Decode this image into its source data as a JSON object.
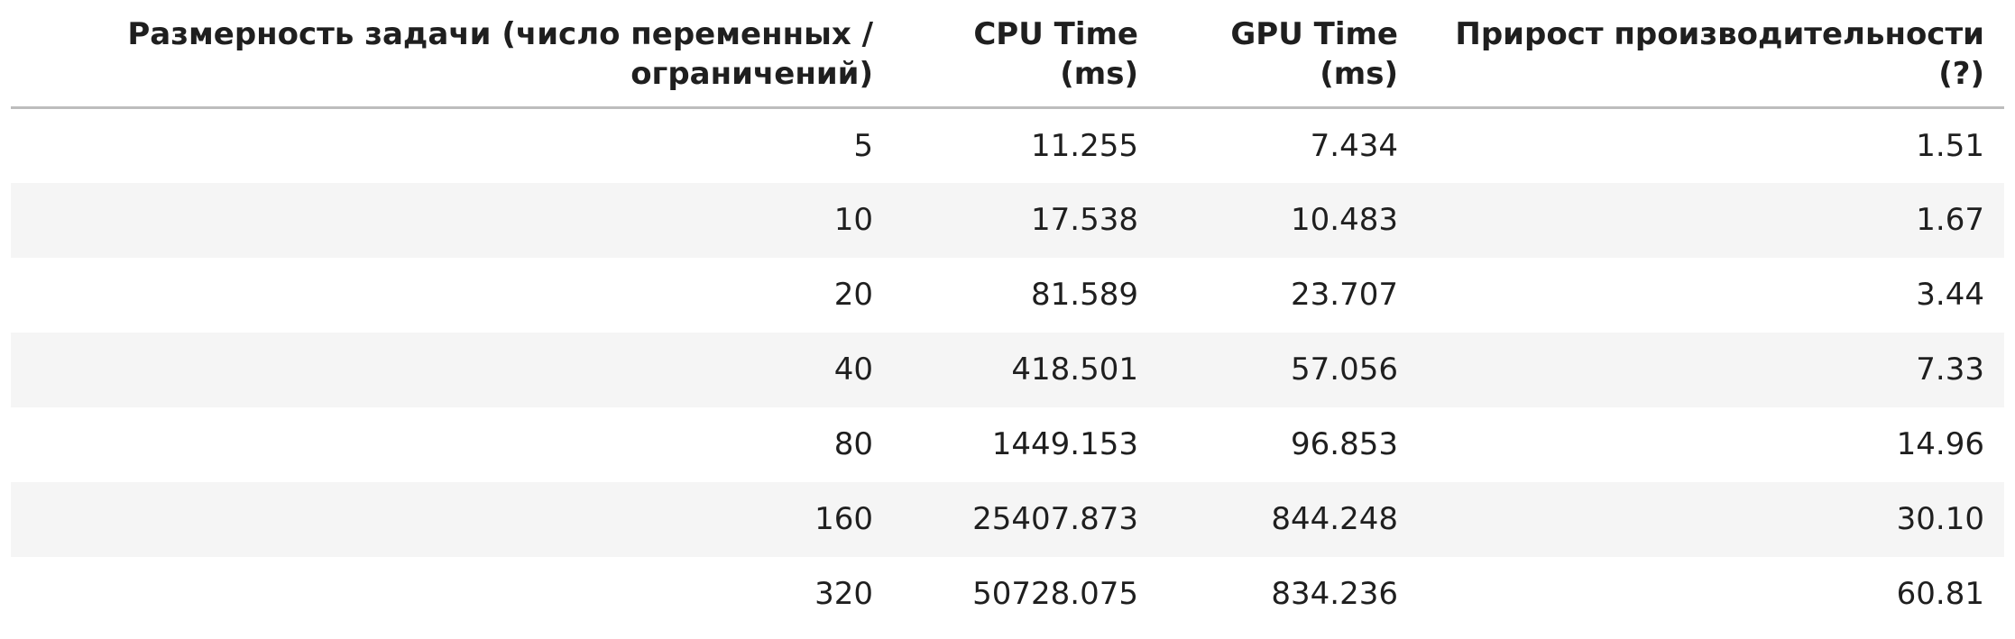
{
  "chart_data": {
    "type": "table",
    "columns": [
      [
        "Размерность задачи (число переменных /",
        "ограничений)"
      ],
      [
        "CPU Time",
        "(ms)"
      ],
      [
        "GPU Time",
        "(ms)"
      ],
      [
        "Прирост производительности",
        "(?)"
      ]
    ],
    "rows": [
      [
        "5",
        "11.255",
        "7.434",
        "1.51"
      ],
      [
        "10",
        "17.538",
        "10.483",
        "1.67"
      ],
      [
        "20",
        "81.589",
        "23.707",
        "3.44"
      ],
      [
        "40",
        "418.501",
        "57.056",
        "7.33"
      ],
      [
        "80",
        "1449.153",
        "96.853",
        "14.96"
      ],
      [
        "160",
        "25407.873",
        "844.248",
        "30.10"
      ],
      [
        "320",
        "50728.075",
        "834.236",
        "60.81"
      ]
    ]
  }
}
